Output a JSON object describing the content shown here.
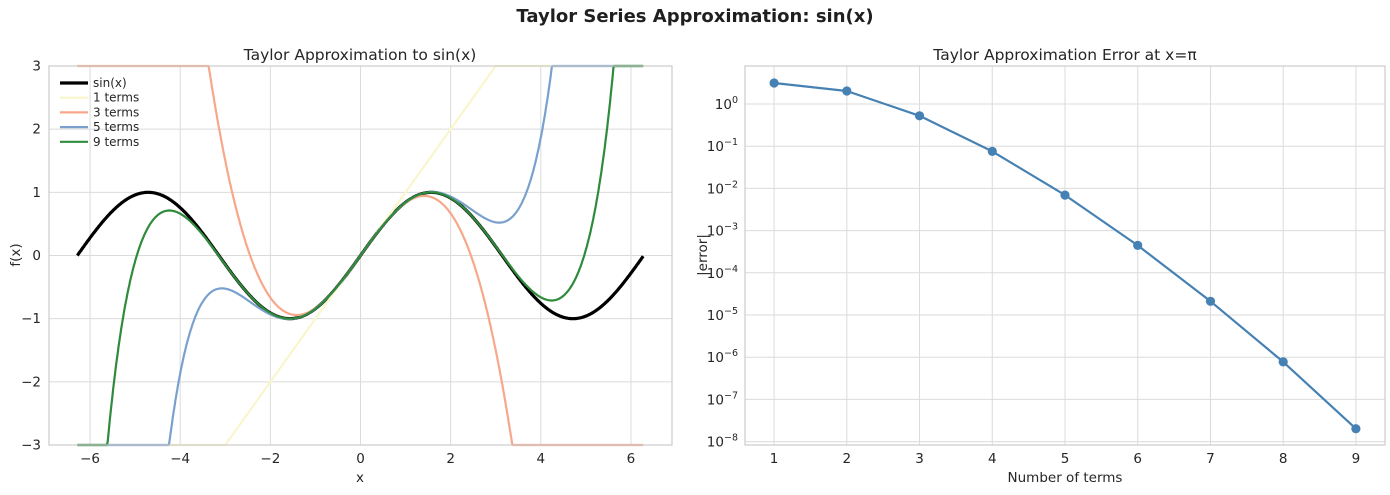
{
  "figure": {
    "title": "Taylor Series Approximation: sin(x)"
  },
  "style": {
    "grid_color": "#dbdbdb",
    "spine_color": "#cccccc",
    "text_color": "#262626"
  },
  "chart_data": [
    {
      "type": "line",
      "title": "Taylor Approximation to sin(x)",
      "xlabel": "x",
      "ylabel": "f(x)",
      "xlim": [
        -6.911,
        6.911
      ],
      "ylim": [
        -3,
        3
      ],
      "xticks": [
        -6,
        -4,
        -2,
        0,
        2,
        4,
        6
      ],
      "yticks": [
        -3,
        -2,
        -1,
        0,
        1,
        2,
        3
      ],
      "x_range": [
        -6.2832,
        6.2832
      ],
      "clip": [
        -3,
        3
      ],
      "grid": true,
      "legend_position": "upper left",
      "series": [
        {
          "name": "sin(x)",
          "kind": "sin",
          "degree": null,
          "color": "#000000",
          "linewidth": 3.2
        },
        {
          "name": "1 terms",
          "kind": "taylor",
          "degree": 1,
          "color": "#FAF6CC",
          "linewidth": 2.2
        },
        {
          "name": "3 terms",
          "kind": "taylor",
          "degree": 3,
          "color": "#F7A78A",
          "linewidth": 2.2
        },
        {
          "name": "5 terms",
          "kind": "taylor",
          "degree": 5,
          "color": "#7AA1CE",
          "linewidth": 2.2
        },
        {
          "name": "9 terms",
          "kind": "taylor",
          "degree": 9,
          "color": "#2F8B3C",
          "linewidth": 2.2
        }
      ]
    },
    {
      "type": "line",
      "yscale": "log",
      "title": "Taylor Approximation Error at x=π",
      "xlabel": "Number of terms",
      "ylabel": "|error|",
      "x": [
        1,
        2,
        3,
        4,
        5,
        6,
        7,
        8,
        9
      ],
      "values": [
        3.14159265,
        2.02612013,
        0.52404391,
        0.07522062,
        0.00692527,
        0.00044516,
        2.114e-05,
        7.75e-07,
        2.02e-08
      ],
      "xticks": [
        1,
        2,
        3,
        4,
        5,
        6,
        7,
        8,
        9
      ],
      "ytick_exponents": [
        0,
        -1,
        -2,
        -3,
        -4,
        -5,
        -6,
        -7,
        -8
      ],
      "xlim": [
        0.6,
        9.4
      ],
      "ylim_log": [
        0.9,
        -8.08
      ],
      "grid": true,
      "color": "#4681B4",
      "marker": "o",
      "linewidth": 2.2,
      "markersize": 4.6
    }
  ]
}
